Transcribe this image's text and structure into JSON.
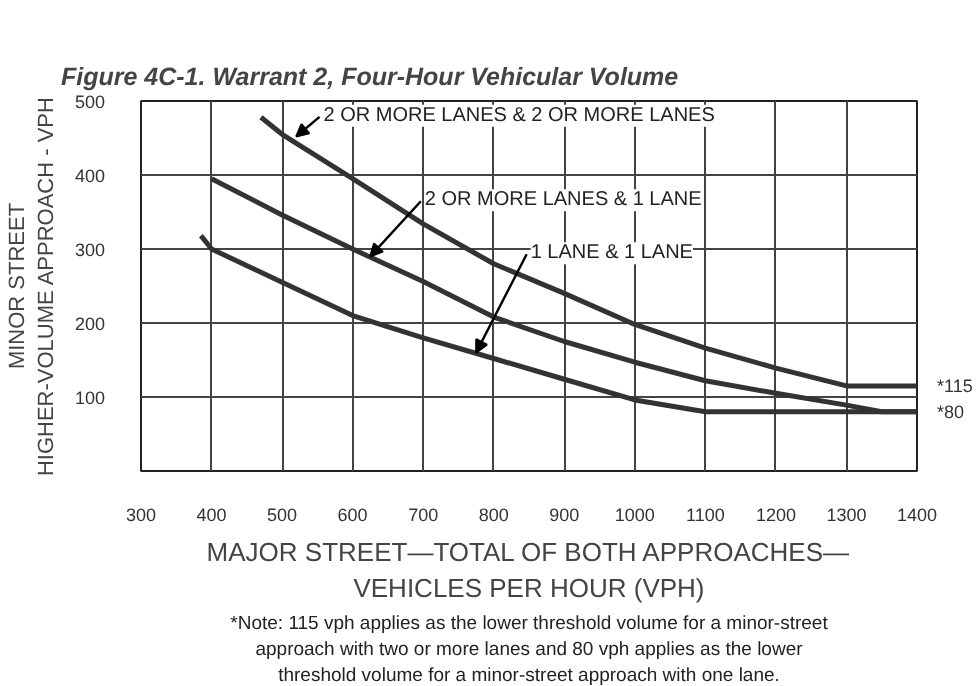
{
  "chart_data": {
    "type": "line",
    "title": "Figure 4C-1.  Warrant 2, Four-Hour Vehicular Volume",
    "xlabel": "MAJOR STREET—TOTAL OF BOTH APPROACHES—\nVEHICLES PER HOUR (VPH)",
    "ylabel": "MINOR STREET\nHIGHER-VOLUME APPROACH - VPH",
    "xlim": [
      300,
      1400
    ],
    "ylim": [
      0,
      500
    ],
    "xticks": [
      300,
      400,
      500,
      600,
      700,
      800,
      900,
      1000,
      1100,
      1200,
      1300,
      1400
    ],
    "yticks": [
      100,
      200,
      300,
      400,
      500
    ],
    "grid": true,
    "marker": "none",
    "line_style": "solid",
    "series": [
      {
        "color": "#333333",
        "x": [
          470,
          500,
          600,
          700,
          800,
          900,
          1000,
          1100,
          1200,
          1300,
          1400
        ],
        "values": [
          478,
          455,
          395,
          334,
          280,
          240,
          198,
          166,
          139,
          115,
          115
        ]
      },
      {
        "color": "#333333",
        "x": [
          400,
          500,
          600,
          700,
          800,
          900,
          1000,
          1100,
          1200,
          1300,
          1350,
          1400
        ],
        "values": [
          395,
          346,
          300,
          256,
          208,
          175,
          147,
          122,
          105,
          89,
          80,
          80
        ]
      },
      {
        "color": "#333333",
        "x": [
          385,
          400,
          500,
          600,
          700,
          800,
          900,
          1000,
          1100,
          1400
        ],
        "values": [
          318,
          300,
          255,
          210,
          180,
          152,
          124,
          96,
          80,
          80
        ]
      }
    ],
    "annotations": [
      {
        "text": "2 OR MORE LANES & 2 OR MORE LANES",
        "x": 520,
        "y": 452
      },
      {
        "text": "2 OR MORE LANES & 1 LANE",
        "x": 625,
        "y": 290
      },
      {
        "text": "1 LANE & 1 LANE",
        "x": 775,
        "y": 160
      },
      {
        "text": "*115",
        "x": 1400,
        "y": 115
      },
      {
        "text": "*80",
        "x": 1400,
        "y": 80
      },
      "*Note: 115 vph applies as the lower threshold volume for a minor-street\napproach with two or more lanes and 80 vph applies as the lower\nthreshold volume for a minor-street approach with one lane."
    ]
  }
}
